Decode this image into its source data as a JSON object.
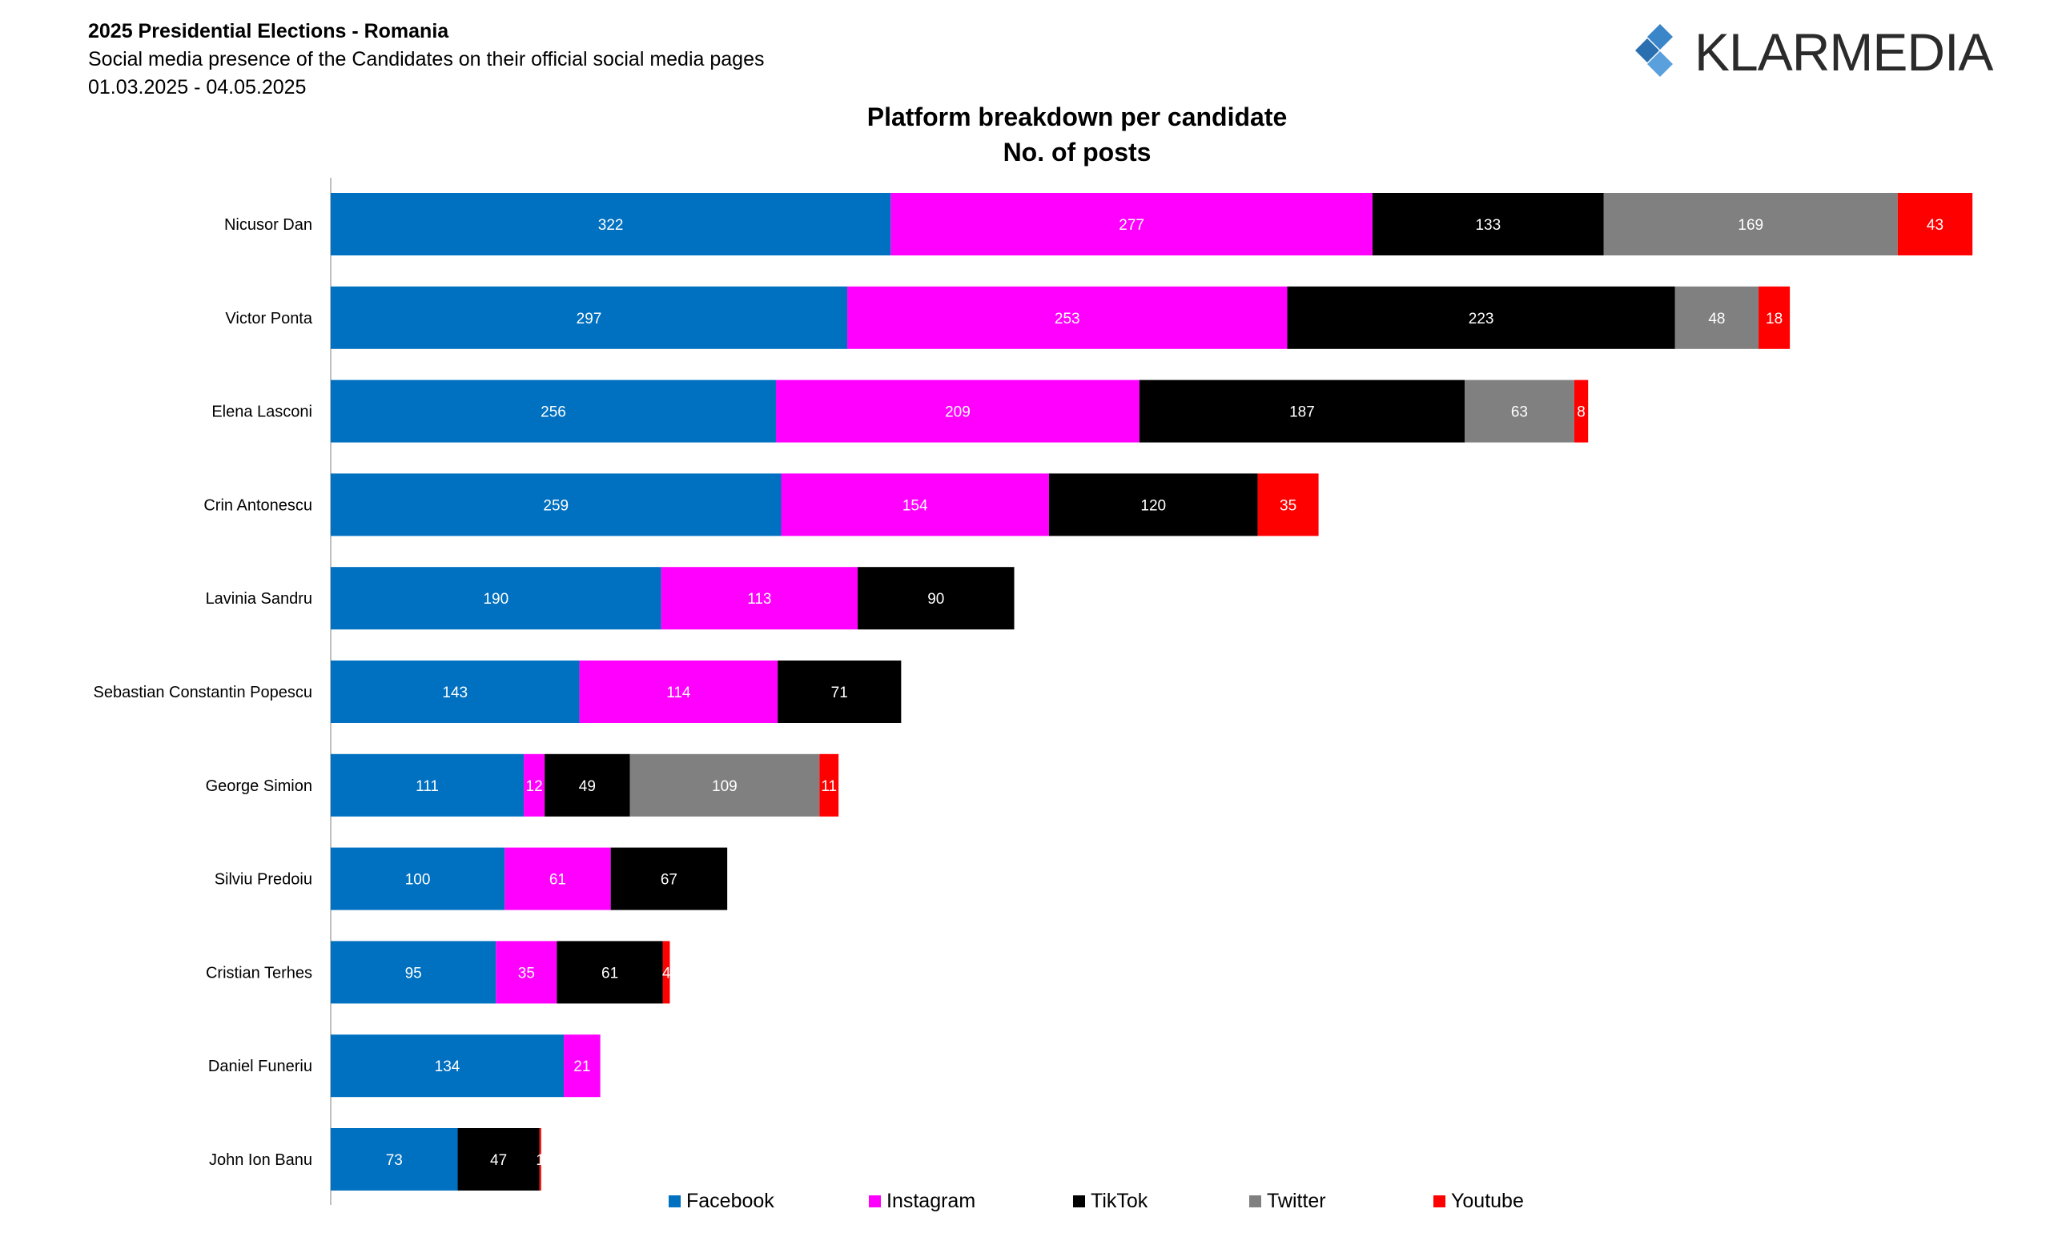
{
  "header": {
    "line1": "2025 Presidential Elections - Romania",
    "line2": "Social media presence of the Candidates on their official social media pages",
    "line3": "01.03.2025 - 04.05.2025"
  },
  "logo": {
    "text": "KLARMEDIA",
    "color": "#3a86c8"
  },
  "chart_data": {
    "type": "bar",
    "orientation": "horizontal",
    "stacked": true,
    "title": "Platform breakdown per candidate",
    "subtitle": "No. of posts",
    "xlabel": "",
    "ylabel": "",
    "grid": false,
    "legend_position": "bottom",
    "categories": [
      "Nicusor Dan",
      "Victor Ponta",
      "Elena Lasconi",
      "Crin Antonescu",
      "Lavinia Sandru",
      "Sebastian Constantin Popescu",
      "George Simion",
      "Silviu Predoiu",
      "Cristian Terhes",
      "Daniel Funeriu",
      "John Ion Banu"
    ],
    "series": [
      {
        "name": "Facebook",
        "color": "#0070c0",
        "values": [
          322,
          297,
          256,
          259,
          190,
          143,
          111,
          100,
          95,
          134,
          73
        ]
      },
      {
        "name": "Instagram",
        "color": "#ff00ff",
        "values": [
          277,
          253,
          209,
          154,
          113,
          114,
          12,
          61,
          35,
          21,
          0
        ]
      },
      {
        "name": "TikTok",
        "color": "#000000",
        "values": [
          133,
          223,
          187,
          120,
          90,
          71,
          49,
          67,
          61,
          0,
          47
        ]
      },
      {
        "name": "Twitter",
        "color": "#808080",
        "values": [
          169,
          48,
          63,
          0,
          0,
          0,
          109,
          0,
          0,
          0,
          0
        ]
      },
      {
        "name": "Youtube",
        "color": "#ff0000",
        "values": [
          43,
          18,
          8,
          35,
          0,
          0,
          11,
          0,
          4,
          0,
          1
        ]
      }
    ]
  }
}
